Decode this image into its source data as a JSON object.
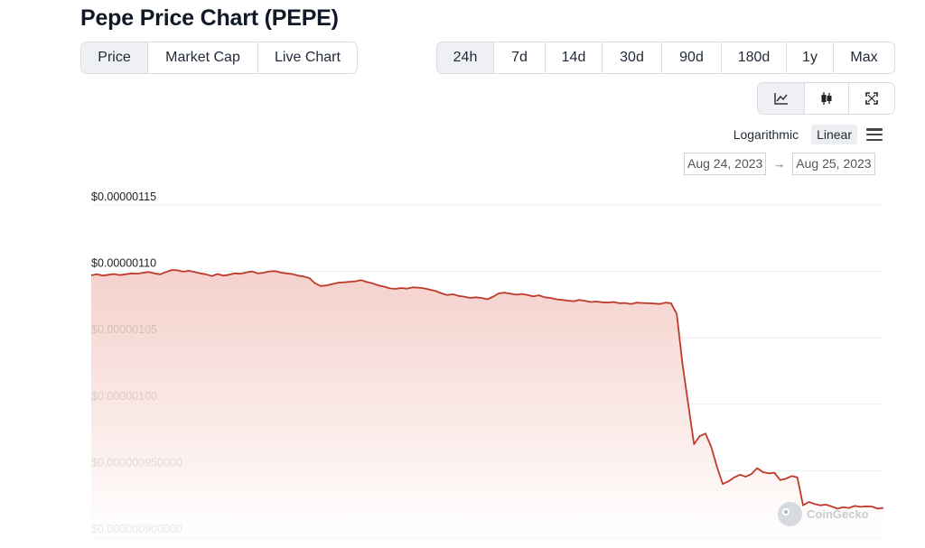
{
  "page": {
    "title": "Pepe Price Chart (PEPE)"
  },
  "tabs": [
    {
      "label": "Price",
      "active": true
    },
    {
      "label": "Market Cap",
      "active": false
    },
    {
      "label": "Live Chart",
      "active": false
    }
  ],
  "ranges": [
    {
      "label": "24h",
      "active": true
    },
    {
      "label": "7d",
      "active": false
    },
    {
      "label": "14d",
      "active": false
    },
    {
      "label": "30d",
      "active": false
    },
    {
      "label": "90d",
      "active": false
    },
    {
      "label": "180d",
      "active": false
    },
    {
      "label": "1y",
      "active": false
    },
    {
      "label": "Max",
      "active": false
    }
  ],
  "views": [
    {
      "icon": "line-chart-icon",
      "active": true
    },
    {
      "icon": "candlestick-icon",
      "active": false
    },
    {
      "icon": "fullscreen-icon",
      "active": false
    }
  ],
  "scale": {
    "logarithmic": "Logarithmic",
    "linear": "Linear",
    "selected": "Linear"
  },
  "date_range": {
    "from": "Aug 24, 2023",
    "to": "Aug 25, 2023",
    "arrow": "→"
  },
  "watermark": "CoinGecko",
  "colors": {
    "line": "#c0392b",
    "fill_top": "#f3c9c3",
    "grid": "#eceef1",
    "active_bg": "#eef0f3"
  },
  "chart_data": {
    "type": "area",
    "title": "",
    "xlabel": "",
    "ylabel": "",
    "ylim": [
      9e-07,
      1.15e-06
    ],
    "y_ticks": [
      {
        "value": 1.15e-06,
        "label": "$0.00000115"
      },
      {
        "value": 1.1e-06,
        "label": "$0.00000110"
      },
      {
        "value": 1.05e-06,
        "label": "$0.00000105"
      },
      {
        "value": 1e-06,
        "label": "$0.00000100"
      },
      {
        "value": 9.5e-07,
        "label": "$0.000000950000"
      },
      {
        "value": 9e-07,
        "label": "$0.000000900000"
      }
    ],
    "grid": true,
    "series": [
      {
        "values": [
          1.097,
          1.0978,
          1.0968,
          1.0975,
          1.098,
          1.0972,
          1.0978,
          1.0985,
          1.0982,
          1.099,
          1.0995,
          1.0985,
          1.0978,
          1.0995,
          1.101,
          1.1008,
          1.0998,
          1.1005,
          1.0995,
          1.0985,
          1.0978,
          1.0965,
          1.098,
          1.0968,
          1.0975,
          1.0985,
          1.0982,
          1.0992,
          1.1,
          1.0985,
          1.099,
          1.1,
          1.1002,
          1.0992,
          1.0985,
          1.098,
          1.0968,
          1.0962,
          1.095,
          1.091,
          1.089,
          1.0895,
          1.0905,
          1.0915,
          1.0918,
          1.0922,
          1.0925,
          1.0935,
          1.092,
          1.091,
          1.0895,
          1.0885,
          1.0872,
          1.0868,
          1.0875,
          1.087,
          1.088,
          1.0878,
          1.0872,
          1.0862,
          1.0852,
          1.0835,
          1.0822,
          1.0828,
          1.0815,
          1.081,
          1.08,
          1.0805,
          1.08,
          1.079,
          1.081,
          1.0835,
          1.084,
          1.0832,
          1.0825,
          1.083,
          1.0822,
          1.0812,
          1.082,
          1.0805,
          1.08,
          1.079,
          1.0785,
          1.078,
          1.0775,
          1.0785,
          1.0778,
          1.077,
          1.0773,
          1.0768,
          1.0765,
          1.077,
          1.076,
          1.0762,
          1.0755,
          1.0765,
          1.0762,
          1.076,
          1.0758,
          1.0755,
          1.0765,
          1.076,
          1.068,
          1.03,
          1.0,
          0.97,
          0.976,
          0.978,
          0.968,
          0.953,
          0.94,
          0.942,
          0.945,
          0.947,
          0.9455,
          0.9475,
          0.952,
          0.949,
          0.948,
          0.9485,
          0.943,
          0.944,
          0.946,
          0.945,
          0.924,
          0.9265,
          0.925,
          0.924,
          0.9245,
          0.923,
          0.9215,
          0.9225,
          0.922,
          0.9235,
          0.9228,
          0.9232,
          0.923,
          0.9215,
          0.922
        ]
      }
    ]
  }
}
